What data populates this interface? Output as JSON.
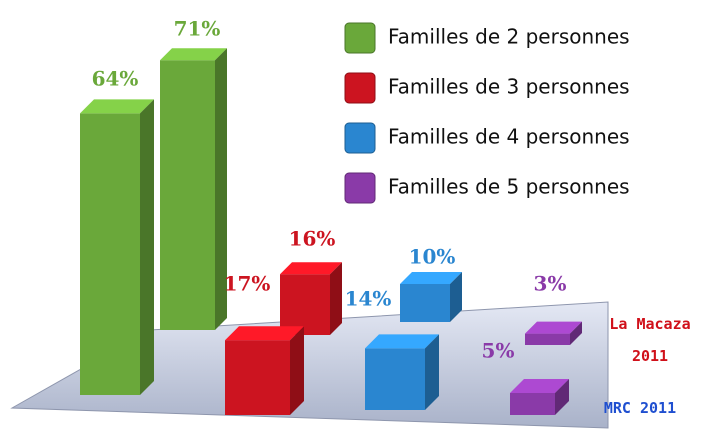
{
  "chart_data": {
    "type": "bar",
    "categories": [
      "MRC 2011",
      "La Macaza 2011"
    ],
    "category_colors": [
      "#1f4fd0",
      "#d0101a"
    ],
    "series": [
      {
        "name": "Familles de 2 personnes",
        "color": "#6aa83a",
        "values": [
          64,
          71
        ],
        "value_labels": [
          "64%",
          "71%"
        ]
      },
      {
        "name": "Familles de 3 personnes",
        "color": "#cc1420",
        "values": [
          17,
          16
        ],
        "value_labels": [
          "17%",
          "16%"
        ]
      },
      {
        "name": "Familles de 4 personnes",
        "color": "#2a86d0",
        "values": [
          14,
          10
        ],
        "value_labels": [
          "14%",
          "10%"
        ]
      },
      {
        "name": "Familles de 5 personnes",
        "color": "#8a3aa8",
        "values": [
          5,
          3
        ],
        "value_labels": [
          "5%",
          "3%"
        ]
      }
    ]
  }
}
